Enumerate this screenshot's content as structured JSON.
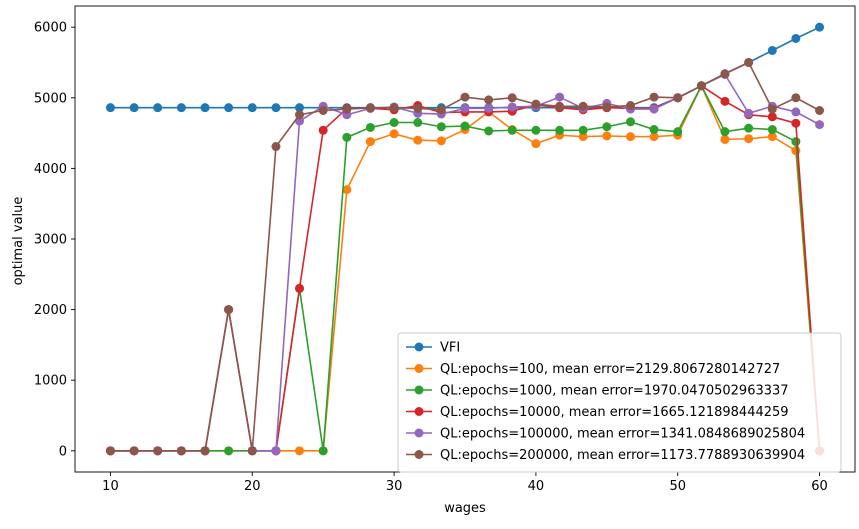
{
  "chart_data": {
    "type": "line",
    "title": "",
    "xlabel": "wages",
    "ylabel": "optimal value",
    "xlim": [
      7.5,
      62.5
    ],
    "ylim": [
      -300,
      6300
    ],
    "xticks": [
      10,
      20,
      30,
      40,
      50,
      60
    ],
    "yticks": [
      0,
      1000,
      2000,
      3000,
      4000,
      5000,
      6000
    ],
    "grid": false,
    "legend_position": "lower-right",
    "x": [
      10.0,
      11.67,
      13.33,
      15.0,
      16.67,
      18.33,
      20.0,
      21.67,
      23.33,
      25.0,
      26.67,
      28.33,
      30.0,
      31.67,
      33.33,
      35.0,
      36.67,
      38.33,
      40.0,
      41.67,
      43.33,
      45.0,
      46.67,
      48.33,
      50.0,
      51.67,
      53.33,
      55.0,
      56.67,
      58.33,
      60.0
    ],
    "series": [
      {
        "name": "VFI",
        "color": "#1f77b4",
        "values": [
          4860,
          4860,
          4860,
          4860,
          4860,
          4860,
          4860,
          4860,
          4860,
          4860,
          4860,
          4860,
          4860,
          4860,
          4860,
          4860,
          4860,
          4860,
          4860,
          4860,
          4860,
          4860,
          4860,
          4860,
          5000,
          5170,
          5340,
          5500,
          5670,
          5840,
          6000
        ]
      },
      {
        "name": "QL:epochs=100, mean error=2129.8067280142727",
        "color": "#ff7f0e",
        "values": [
          0,
          0,
          0,
          0,
          0,
          0,
          0,
          0,
          0,
          0,
          3700,
          4380,
          4490,
          4400,
          4390,
          4550,
          4800,
          4550,
          4350,
          4470,
          4450,
          4460,
          4450,
          4450,
          4470,
          5170,
          4410,
          4420,
          4450,
          4250,
          0
        ]
      },
      {
        "name": "QL:epochs=1000, mean error=1970.0470502963337",
        "color": "#2ca02c",
        "values": [
          0,
          0,
          0,
          0,
          0,
          0,
          0,
          0,
          2300,
          0,
          4440,
          4580,
          4650,
          4650,
          4590,
          4600,
          4530,
          4540,
          4540,
          4540,
          4540,
          4590,
          4660,
          4550,
          4520,
          5170,
          4520,
          4570,
          4550,
          4380,
          0
        ]
      },
      {
        "name": "QL:epochs=10000, mean error=1665.121898444259",
        "color": "#d62728",
        "values": [
          0,
          0,
          0,
          0,
          0,
          2000,
          0,
          0,
          2300,
          4540,
          4850,
          4850,
          4830,
          4890,
          4790,
          4800,
          4800,
          4810,
          4900,
          4860,
          4830,
          4860,
          4850,
          4850,
          5000,
          5170,
          4950,
          4760,
          4730,
          4640,
          0
        ]
      },
      {
        "name": "QL:epochs=100000, mean error=1341.0848689025804",
        "color": "#9467bd",
        "values": [
          0,
          0,
          0,
          0,
          0,
          2000,
          0,
          0,
          4670,
          4880,
          4760,
          4850,
          4870,
          4780,
          4770,
          4850,
          4850,
          4870,
          4880,
          5010,
          4850,
          4920,
          4840,
          4840,
          5000,
          5170,
          5330,
          4780,
          4880,
          4800,
          4620
        ]
      },
      {
        "name": "QL:epochs=200000, mean error=1173.7788930639904",
        "color": "#8c564b",
        "values": [
          0,
          0,
          0,
          0,
          0,
          2000,
          0,
          4310,
          4760,
          4820,
          4840,
          4860,
          4860,
          4850,
          4830,
          5010,
          4970,
          5000,
          4910,
          4880,
          4880,
          4870,
          4890,
          5010,
          5000,
          5170,
          5340,
          5500,
          4840,
          5000,
          4820
        ]
      }
    ]
  }
}
